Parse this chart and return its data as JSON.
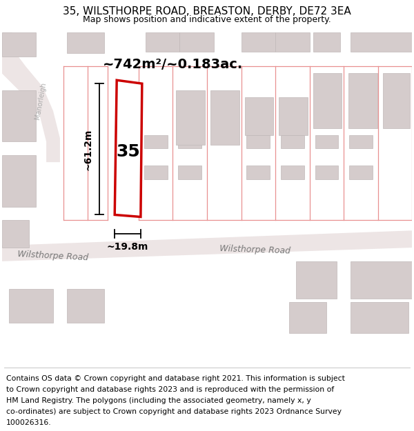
{
  "title": "35, WILSTHORPE ROAD, BREASTON, DERBY, DE72 3EA",
  "subtitle": "Map shows position and indicative extent of the property.",
  "footer_lines": [
    "Contains OS data © Crown copyright and database right 2021. This information is subject",
    "to Crown copyright and database rights 2023 and is reproduced with the permission of",
    "HM Land Registry. The polygons (including the associated geometry, namely x, y",
    "co-ordinates) are subject to Crown copyright and database rights 2023 Ordnance Survey",
    "100026316."
  ],
  "area_label": "~742m²/~0.183ac.",
  "width_label": "~19.8m",
  "height_label": "~61.2m",
  "number_label": "35",
  "road_label_left": "Wilsthorpe Road",
  "road_label_right": "Wilsthorpe Road",
  "street_label": "Manorleigh",
  "map_bg": "#f7f0f0",
  "road_fill": "#ede5e5",
  "plot_red": "#cc0000",
  "plot_pink": "#e89090",
  "building_fill": "#d5cccc",
  "building_edge": "#c0b8b8",
  "title_fontsize": 11,
  "subtitle_fontsize": 9,
  "footer_fontsize": 7.8,
  "area_fontsize": 14,
  "number_fontsize": 18,
  "dim_fontsize": 10,
  "road_fontsize": 9,
  "street_fontsize": 7
}
